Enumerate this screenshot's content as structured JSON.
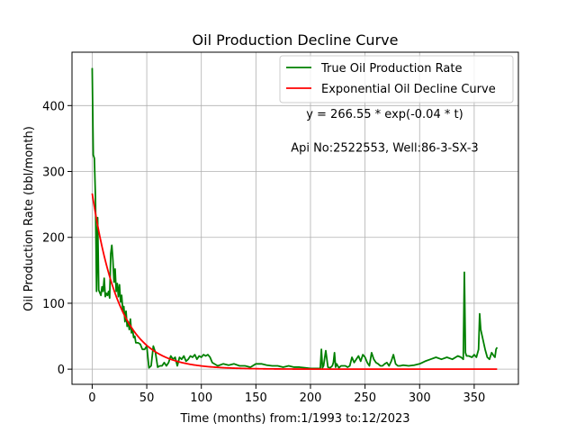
{
  "chart_data": {
    "type": "line",
    "title": "Oil Production Decline Curve",
    "xlabel": "Time (months) from:1/1993 to:12/2023",
    "ylabel": "Oil Production Rate (bbl/month)",
    "xlim": [
      -18.5,
      390.5
    ],
    "ylim": [
      -23,
      481
    ],
    "xticks": [
      0,
      50,
      100,
      150,
      200,
      250,
      300,
      350
    ],
    "yticks": [
      0,
      100,
      200,
      300,
      400
    ],
    "grid": true,
    "legend_position": "top-right",
    "annotations": [
      {
        "text": "y = 266.55 * exp(-0.04 * t)",
        "x": 268,
        "y": 381
      },
      {
        "text": "Api No:2522553, Well:86-3-SX-3",
        "x": 268,
        "y": 330
      }
    ],
    "series": [
      {
        "name": "True Oil Production Rate",
        "color": "#008000",
        "x": [
          0,
          1,
          2,
          3,
          4,
          5,
          6,
          7,
          8,
          9,
          10,
          11,
          12,
          13,
          14,
          15,
          16,
          17,
          18,
          19,
          20,
          21,
          22,
          23,
          24,
          25,
          26,
          27,
          28,
          29,
          30,
          31,
          32,
          33,
          34,
          35,
          36,
          37,
          38,
          39,
          40,
          42,
          44,
          46,
          48,
          50,
          52,
          54,
          56,
          58,
          60,
          62,
          64,
          66,
          68,
          70,
          72,
          74,
          76,
          78,
          80,
          82,
          84,
          86,
          88,
          90,
          92,
          94,
          96,
          98,
          100,
          102,
          104,
          106,
          108,
          110,
          115,
          120,
          125,
          130,
          135,
          140,
          145,
          150,
          155,
          160,
          165,
          170,
          175,
          180,
          185,
          190,
          195,
          200,
          205,
          209,
          210,
          211,
          212,
          214,
          216,
          218,
          220,
          221,
          222,
          223,
          224,
          226,
          228,
          230,
          232,
          234,
          236,
          238,
          240,
          242,
          244,
          246,
          248,
          250,
          252,
          254,
          256,
          258,
          260,
          262,
          264,
          266,
          268,
          270,
          272,
          274,
          276,
          278,
          280,
          282,
          285,
          290,
          295,
          300,
          305,
          310,
          315,
          320,
          325,
          330,
          335,
          338,
          340,
          341,
          342,
          343,
          345,
          348,
          350,
          352,
          354,
          355,
          356,
          358,
          360,
          362,
          364,
          366,
          368,
          369,
          370,
          371
        ],
        "values": [
          457,
          325,
          320,
          260,
          118,
          230,
          120,
          116,
          112,
          125,
          118,
          138,
          110,
          115,
          112,
          118,
          108,
          175,
          188,
          165,
          132,
          152,
          118,
          130,
          110,
          128,
          102,
          112,
          90,
          95,
          72,
          88,
          65,
          72,
          60,
          76,
          55,
          60,
          48,
          50,
          40,
          40,
          38,
          30,
          30,
          35,
          2,
          5,
          35,
          25,
          3,
          5,
          5,
          10,
          5,
          10,
          20,
          15,
          18,
          5,
          18,
          15,
          20,
          12,
          15,
          20,
          18,
          22,
          15,
          20,
          18,
          22,
          20,
          22,
          18,
          10,
          5,
          8,
          6,
          8,
          5,
          5,
          3,
          8,
          8,
          6,
          5,
          5,
          3,
          5,
          3,
          3,
          2,
          1,
          1,
          1,
          30,
          2,
          5,
          28,
          3,
          2,
          5,
          10,
          25,
          3,
          8,
          2,
          5,
          5,
          5,
          3,
          5,
          18,
          10,
          15,
          20,
          12,
          22,
          18,
          10,
          5,
          25,
          15,
          10,
          8,
          5,
          5,
          8,
          10,
          5,
          12,
          22,
          8,
          5,
          5,
          6,
          5,
          6,
          8,
          12,
          15,
          18,
          15,
          18,
          15,
          20,
          18,
          15,
          147,
          25,
          20,
          20,
          18,
          22,
          18,
          30,
          84,
          60,
          45,
          30,
          18,
          15,
          25,
          20,
          18,
          30,
          33
        ]
      },
      {
        "name": "Exponential Oil Decline Curve",
        "color": "#ff0000",
        "function": {
          "a": 266.55,
          "b": -0.04,
          "x_start": 0,
          "x_end": 371,
          "step": 1
        }
      }
    ]
  }
}
